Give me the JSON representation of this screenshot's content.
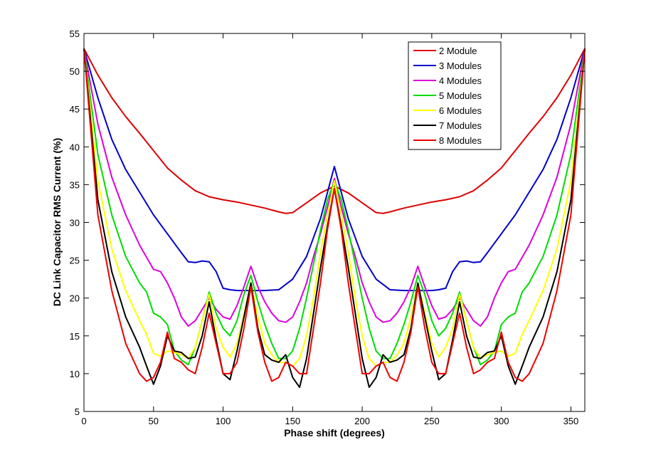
{
  "chart_data": {
    "type": "line",
    "title": "",
    "xlabel": "Phase shift (degrees)",
    "ylabel": "DC Link Capacitor RMS Current (%)",
    "xlim": [
      0,
      360
    ],
    "ylim": [
      5,
      55
    ],
    "xticks": [
      0,
      50,
      100,
      150,
      200,
      250,
      300,
      350
    ],
    "yticks": [
      5,
      10,
      15,
      20,
      25,
      30,
      35,
      40,
      45,
      50,
      55
    ],
    "grid": false,
    "legend_position": "top-right",
    "series": [
      {
        "name": "2 Module",
        "color": "#dd0000",
        "x": [
          0,
          10,
          20,
          30,
          40,
          50,
          60,
          70,
          80,
          90,
          100,
          110,
          120,
          130,
          140,
          145,
          150,
          160,
          170,
          180,
          190,
          200,
          210,
          215,
          220,
          230,
          240,
          250,
          260,
          270,
          280,
          290,
          300,
          310,
          320,
          330,
          340,
          350,
          360
        ],
        "y": [
          53,
          49.5,
          46.5,
          44,
          41.8,
          39.5,
          37.2,
          35.6,
          34.2,
          33.4,
          33,
          32.7,
          32.3,
          31.9,
          31.4,
          31.2,
          31.3,
          32.6,
          33.9,
          34.8,
          33.9,
          32.6,
          31.3,
          31.2,
          31.4,
          31.9,
          32.3,
          32.7,
          33,
          33.4,
          34.2,
          35.6,
          37.2,
          39.5,
          41.8,
          44,
          46.5,
          49.5,
          53
        ]
      },
      {
        "name": "3 Modules",
        "color": "#0000cc",
        "x": [
          0,
          10,
          20,
          30,
          40,
          50,
          60,
          70,
          75,
          80,
          85,
          90,
          95,
          100,
          105,
          110,
          120,
          130,
          140,
          150,
          160,
          170,
          180,
          190,
          200,
          210,
          220,
          230,
          240,
          250,
          255,
          260,
          265,
          270,
          275,
          280,
          285,
          290,
          300,
          310,
          320,
          330,
          340,
          350,
          360
        ],
        "y": [
          53,
          46.5,
          41,
          37,
          34,
          31,
          28.5,
          26,
          24.8,
          24.7,
          24.9,
          24.8,
          23.5,
          21.3,
          21.1,
          21,
          21,
          21,
          21.1,
          22.5,
          25.5,
          30.5,
          37.4,
          30.5,
          25.5,
          22.5,
          21.1,
          21,
          21,
          21,
          21.1,
          21.3,
          23.5,
          24.8,
          24.9,
          24.7,
          24.8,
          26,
          28.5,
          31,
          34,
          37,
          41,
          46.5,
          53
        ]
      },
      {
        "name": "4 Modules",
        "color": "#dd00dd",
        "x": [
          0,
          10,
          20,
          30,
          40,
          50,
          55,
          60,
          65,
          70,
          75,
          80,
          85,
          90,
          95,
          100,
          105,
          110,
          115,
          120,
          125,
          130,
          135,
          140,
          145,
          150,
          155,
          160,
          165,
          170,
          175,
          180,
          185,
          190,
          195,
          200,
          205,
          210,
          215,
          220,
          225,
          230,
          235,
          240,
          245,
          250,
          255,
          260,
          265,
          270,
          275,
          280,
          285,
          290,
          295,
          300,
          305,
          310,
          320,
          330,
          340,
          350,
          360
        ],
        "y": [
          53,
          43,
          36,
          31,
          27,
          23.8,
          23.5,
          22,
          20,
          17.5,
          16.3,
          17,
          18.5,
          20,
          18.5,
          17.5,
          17.2,
          19,
          21.5,
          24.2,
          21.5,
          19.5,
          18,
          17,
          16.8,
          17.5,
          19.5,
          22,
          25.5,
          28.5,
          32,
          35.8,
          32,
          28.5,
          25.5,
          22,
          19.5,
          17.5,
          16.8,
          17,
          18,
          19.5,
          21.5,
          24.2,
          21.5,
          19,
          17.2,
          17.5,
          18.5,
          20,
          18.5,
          17,
          16.3,
          17.5,
          20,
          22,
          23.5,
          23.8,
          27,
          31,
          36,
          43,
          53
        ]
      },
      {
        "name": "5 Modules",
        "color": "#00dd00",
        "x": [
          0,
          10,
          20,
          30,
          40,
          45,
          50,
          55,
          60,
          65,
          70,
          75,
          80,
          85,
          90,
          95,
          100,
          105,
          110,
          115,
          120,
          125,
          130,
          135,
          140,
          145,
          150,
          155,
          160,
          165,
          170,
          175,
          180,
          185,
          190,
          195,
          200,
          205,
          210,
          215,
          220,
          225,
          230,
          235,
          240,
          245,
          250,
          255,
          260,
          265,
          270,
          275,
          280,
          285,
          290,
          295,
          300,
          305,
          310,
          315,
          320,
          330,
          340,
          350,
          360
        ],
        "y": [
          53,
          39,
          31,
          25.5,
          22,
          20.8,
          18,
          17.5,
          16.5,
          13,
          11.8,
          11.2,
          13.5,
          17,
          20.8,
          18,
          16,
          15,
          17,
          20.5,
          23,
          19.5,
          16.5,
          14,
          12,
          12,
          13,
          16,
          20,
          24.5,
          29,
          33,
          35.4,
          33,
          29,
          24.5,
          20,
          16,
          13,
          12,
          12,
          14,
          16.5,
          19.5,
          23,
          20.5,
          17,
          15,
          16,
          18,
          20.8,
          17,
          13.5,
          11.2,
          11.8,
          13,
          16.5,
          17.5,
          18,
          20.8,
          22,
          25.5,
          31,
          39,
          53
        ]
      },
      {
        "name": "6 Modules",
        "color": "#ffff00",
        "x": [
          0,
          10,
          20,
          30,
          40,
          45,
          50,
          55,
          60,
          65,
          70,
          75,
          80,
          85,
          90,
          95,
          100,
          105,
          110,
          115,
          120,
          125,
          130,
          135,
          140,
          145,
          150,
          155,
          160,
          165,
          170,
          175,
          180,
          185,
          190,
          195,
          200,
          205,
          210,
          215,
          220,
          225,
          230,
          235,
          240,
          245,
          250,
          255,
          260,
          265,
          270,
          275,
          280,
          285,
          290,
          295,
          300,
          305,
          310,
          315,
          320,
          330,
          340,
          350,
          360
        ],
        "y": [
          53,
          35.5,
          26.5,
          21,
          17,
          15.2,
          12.7,
          12.3,
          13,
          12.8,
          12.5,
          12,
          13.5,
          17,
          20.5,
          16,
          13.5,
          12.2,
          14,
          18,
          22,
          17.5,
          14,
          12.5,
          11.5,
          11.5,
          11,
          12,
          15,
          20,
          26,
          31,
          35.5,
          31,
          26,
          20,
          15,
          12,
          11,
          11.5,
          11.5,
          12.5,
          14,
          17.5,
          22,
          18,
          14,
          12.2,
          13.5,
          16,
          20.5,
          17,
          13.5,
          12,
          12.5,
          12.8,
          13,
          12.3,
          12.7,
          15.2,
          17,
          21,
          26.5,
          35.5,
          53
        ]
      },
      {
        "name": "7 Modules",
        "color": "#000000",
        "x": [
          0,
          10,
          20,
          30,
          40,
          45,
          50,
          55,
          60,
          65,
          70,
          75,
          80,
          85,
          90,
          95,
          100,
          105,
          110,
          115,
          120,
          125,
          130,
          135,
          140,
          145,
          150,
          155,
          160,
          165,
          170,
          175,
          180,
          185,
          190,
          195,
          200,
          205,
          210,
          215,
          220,
          225,
          230,
          235,
          240,
          245,
          250,
          255,
          260,
          265,
          270,
          275,
          280,
          285,
          290,
          295,
          300,
          305,
          310,
          315,
          320,
          330,
          340,
          350,
          360
        ],
        "y": [
          53,
          33,
          23.5,
          17.5,
          13.5,
          11,
          8.6,
          11,
          15,
          13,
          12.8,
          12,
          12.2,
          15,
          19.5,
          14.5,
          10,
          9.2,
          13,
          17.5,
          22,
          16,
          12.5,
          11.8,
          11.5,
          12.5,
          9.5,
          8.2,
          12,
          18,
          24,
          29.5,
          34.5,
          29.5,
          24,
          18,
          12,
          8.2,
          9.5,
          12.5,
          11.5,
          11.8,
          12.5,
          16,
          22,
          17.5,
          13,
          9.2,
          10,
          14.5,
          19.5,
          15,
          12.2,
          12,
          12.8,
          13,
          15,
          11,
          8.6,
          11,
          13.5,
          17.5,
          23.5,
          33,
          53
        ]
      },
      {
        "name": "8 Modules",
        "color": "#ee0000",
        "x": [
          0,
          10,
          20,
          30,
          40,
          45,
          50,
          55,
          60,
          65,
          70,
          75,
          80,
          85,
          90,
          95,
          100,
          105,
          110,
          115,
          120,
          125,
          130,
          135,
          140,
          145,
          150,
          155,
          160,
          165,
          170,
          175,
          180,
          185,
          190,
          195,
          200,
          205,
          210,
          215,
          220,
          225,
          230,
          235,
          240,
          245,
          250,
          255,
          260,
          265,
          270,
          275,
          280,
          285,
          290,
          295,
          300,
          305,
          310,
          315,
          320,
          330,
          340,
          350,
          360
        ],
        "y": [
          53,
          31,
          21,
          14,
          10,
          9,
          9.5,
          11.5,
          15.5,
          12,
          11.5,
          10.5,
          10,
          13.5,
          18,
          14,
          10,
          10,
          11.5,
          16,
          21.5,
          15.5,
          11.5,
          9,
          9.5,
          11.5,
          11,
          10,
          10,
          16,
          22,
          29,
          34.5,
          29,
          22,
          16,
          10,
          10,
          11,
          11.5,
          9.5,
          9,
          11.5,
          15.5,
          21.5,
          16,
          11.5,
          10,
          10,
          14,
          18,
          13.5,
          10,
          10.5,
          11.5,
          12,
          15.5,
          11.5,
          9.5,
          9,
          10,
          14,
          21,
          31,
          53
        ]
      }
    ]
  }
}
